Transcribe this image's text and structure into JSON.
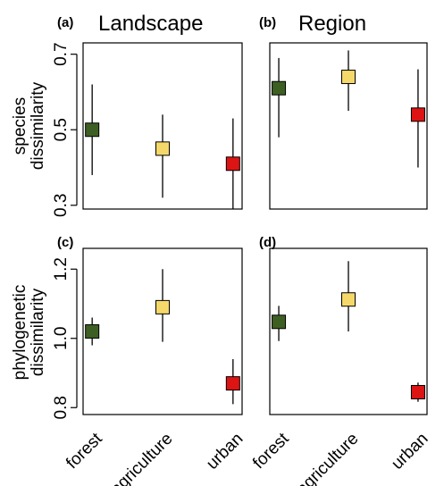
{
  "chart_data": [
    {
      "type": "scatter",
      "panel": "(a)",
      "title": "Landscape",
      "ylabel": [
        "species",
        "dissimilarity"
      ],
      "categories": [
        "forest",
        "agriculture",
        "urban"
      ],
      "values": [
        0.5,
        0.45,
        0.41
      ],
      "lower": [
        0.38,
        0.32,
        0.29
      ],
      "upper": [
        0.62,
        0.54,
        0.53
      ],
      "ylim": [
        0.29,
        0.73
      ],
      "yticks": [
        0.3,
        0.5,
        0.7
      ]
    },
    {
      "type": "scatter",
      "panel": "(b)",
      "title": "Region",
      "ylabel": [
        "",
        ""
      ],
      "categories": [
        "forest",
        "agriculture",
        "urban"
      ],
      "values": [
        0.61,
        0.64,
        0.54
      ],
      "lower": [
        0.48,
        0.55,
        0.4
      ],
      "upper": [
        0.69,
        0.71,
        0.66
      ],
      "ylim": [
        0.29,
        0.73
      ],
      "yticks": []
    },
    {
      "type": "scatter",
      "panel": "(c)",
      "title": "",
      "ylabel": [
        "phylogenetic",
        "dissimilarity"
      ],
      "categories": [
        "forest",
        "agriculture",
        "urban"
      ],
      "values": [
        1.02,
        1.09,
        0.87
      ],
      "lower": [
        0.98,
        0.99,
        0.81
      ],
      "upper": [
        1.06,
        1.2,
        0.94
      ],
      "ylim": [
        0.78,
        1.26
      ],
      "yticks": [
        0.8,
        1.0,
        1.2
      ]
    },
    {
      "type": "scatter",
      "panel": "(d)",
      "title": "",
      "ylabel": [
        "",
        ""
      ],
      "categories": [
        "forest",
        "agriculture",
        "urban"
      ],
      "values": [
        1.07,
        1.14,
        0.85
      ],
      "lower": [
        1.01,
        1.04,
        0.82
      ],
      "upper": [
        1.12,
        1.26,
        0.88
      ],
      "ylim": [
        0.78,
        1.3
      ],
      "yticks": []
    }
  ],
  "colors": {
    "forest": "#3d5f23",
    "agriculture": "#f5d86a",
    "urban": "#dd1414"
  }
}
